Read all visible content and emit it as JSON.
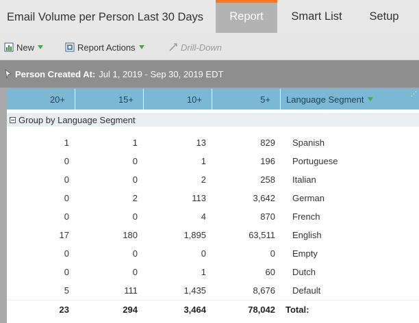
{
  "window": {
    "title": "Email Volume per Person Last 30 Days",
    "tabs": [
      {
        "label": "Report",
        "active": true
      },
      {
        "label": "Smart List",
        "active": false
      },
      {
        "label": "Setup",
        "active": false
      }
    ],
    "accent_color": "#f47a2a"
  },
  "toolbar": {
    "new_label": "New",
    "report_actions_label": "Report Actions",
    "drill_down_label": "Drill-Down"
  },
  "filter": {
    "label": "Person Created At:",
    "value": "Jul 1, 2019 - Sep 30, 2019 EDT"
  },
  "table": {
    "columns": [
      "20+",
      "15+",
      "10+",
      "5+",
      "Language Segment"
    ],
    "group_label": "Group by Language Segment",
    "rows": [
      {
        "c20": "1",
        "c15": "1",
        "c10": "13",
        "c5": "829",
        "segment": "Spanish"
      },
      {
        "c20": "0",
        "c15": "0",
        "c10": "1",
        "c5": "196",
        "segment": "Portuguese"
      },
      {
        "c20": "0",
        "c15": "0",
        "c10": "2",
        "c5": "258",
        "segment": "Italian"
      },
      {
        "c20": "0",
        "c15": "2",
        "c10": "113",
        "c5": "3,642",
        "segment": "German"
      },
      {
        "c20": "0",
        "c15": "0",
        "c10": "4",
        "c5": "870",
        "segment": "French"
      },
      {
        "c20": "17",
        "c15": "180",
        "c10": "1,895",
        "c5": "63,511",
        "segment": "English"
      },
      {
        "c20": "0",
        "c15": "0",
        "c10": "0",
        "c5": "0",
        "segment": "Empty"
      },
      {
        "c20": "0",
        "c15": "0",
        "c10": "1",
        "c5": "60",
        "segment": "Dutch"
      },
      {
        "c20": "5",
        "c15": "111",
        "c10": "1,435",
        "c5": "8,676",
        "segment": "Default"
      }
    ],
    "total": {
      "c20": "23",
      "c15": "294",
      "c10": "3,464",
      "c5": "78,042",
      "segment": "Total:"
    }
  }
}
